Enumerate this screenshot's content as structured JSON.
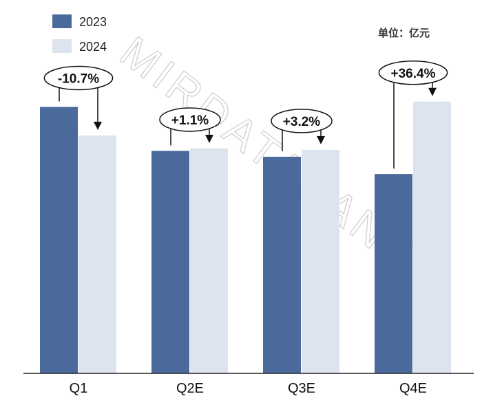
{
  "watermark": "MIRDATABANK",
  "unit_label": "单位：亿元",
  "colors": {
    "2023": "#4a6a9b",
    "2024": "#dde3ef",
    "axis": "#222222",
    "arrow": "#111111"
  },
  "chart_data": {
    "type": "bar",
    "categories": [
      "Q1",
      "Q2E",
      "Q3E",
      "Q4E"
    ],
    "series": [
      {
        "name": "2023",
        "values": [
          100,
          83.5,
          81.3,
          74.8
        ]
      },
      {
        "name": "2024",
        "values": [
          89.3,
          84.4,
          83.9,
          102.0
        ]
      }
    ],
    "changes": [
      "-10.7%",
      "+1.1%",
      "+3.2%",
      "+36.4%"
    ],
    "ylim": [
      0,
      104
    ],
    "legend_position": "top-left",
    "grid": false
  }
}
